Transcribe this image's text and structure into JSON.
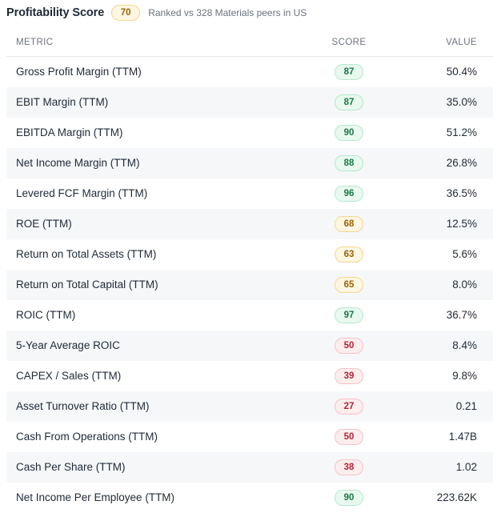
{
  "header": {
    "title": "Profitability Score",
    "score": "70",
    "score_level": "yellow",
    "subtitle": "Ranked vs 328 Materials peers in US"
  },
  "table": {
    "columns": {
      "metric": "METRIC",
      "score": "SCORE",
      "value": "VALUE"
    },
    "rows": [
      {
        "metric": "Gross Profit Margin (TTM)",
        "score": "87",
        "level": "green",
        "value": "50.4%"
      },
      {
        "metric": "EBIT Margin (TTM)",
        "score": "87",
        "level": "green",
        "value": "35.0%"
      },
      {
        "metric": "EBITDA Margin (TTM)",
        "score": "90",
        "level": "green",
        "value": "51.2%"
      },
      {
        "metric": "Net Income Margin (TTM)",
        "score": "88",
        "level": "green",
        "value": "26.8%"
      },
      {
        "metric": "Levered FCF Margin (TTM)",
        "score": "96",
        "level": "green",
        "value": "36.5%"
      },
      {
        "metric": "ROE (TTM)",
        "score": "68",
        "level": "yellow",
        "value": "12.5%"
      },
      {
        "metric": "Return on Total Assets (TTM)",
        "score": "63",
        "level": "yellow",
        "value": "5.6%"
      },
      {
        "metric": "Return on Total Capital (TTM)",
        "score": "65",
        "level": "yellow",
        "value": "8.0%"
      },
      {
        "metric": "ROIC (TTM)",
        "score": "97",
        "level": "green",
        "value": "36.7%"
      },
      {
        "metric": "5-Year Average ROIC",
        "score": "50",
        "level": "red",
        "value": "8.4%"
      },
      {
        "metric": "CAPEX / Sales (TTM)",
        "score": "39",
        "level": "red",
        "value": "9.8%"
      },
      {
        "metric": "Asset Turnover Ratio (TTM)",
        "score": "27",
        "level": "red",
        "value": "0.21"
      },
      {
        "metric": "Cash From Operations (TTM)",
        "score": "50",
        "level": "red",
        "value": "1.47B"
      },
      {
        "metric": "Cash Per Share (TTM)",
        "score": "38",
        "level": "red",
        "value": "1.02"
      },
      {
        "metric": "Net Income Per Employee (TTM)",
        "score": "90",
        "level": "green",
        "value": "223.62K"
      }
    ]
  }
}
